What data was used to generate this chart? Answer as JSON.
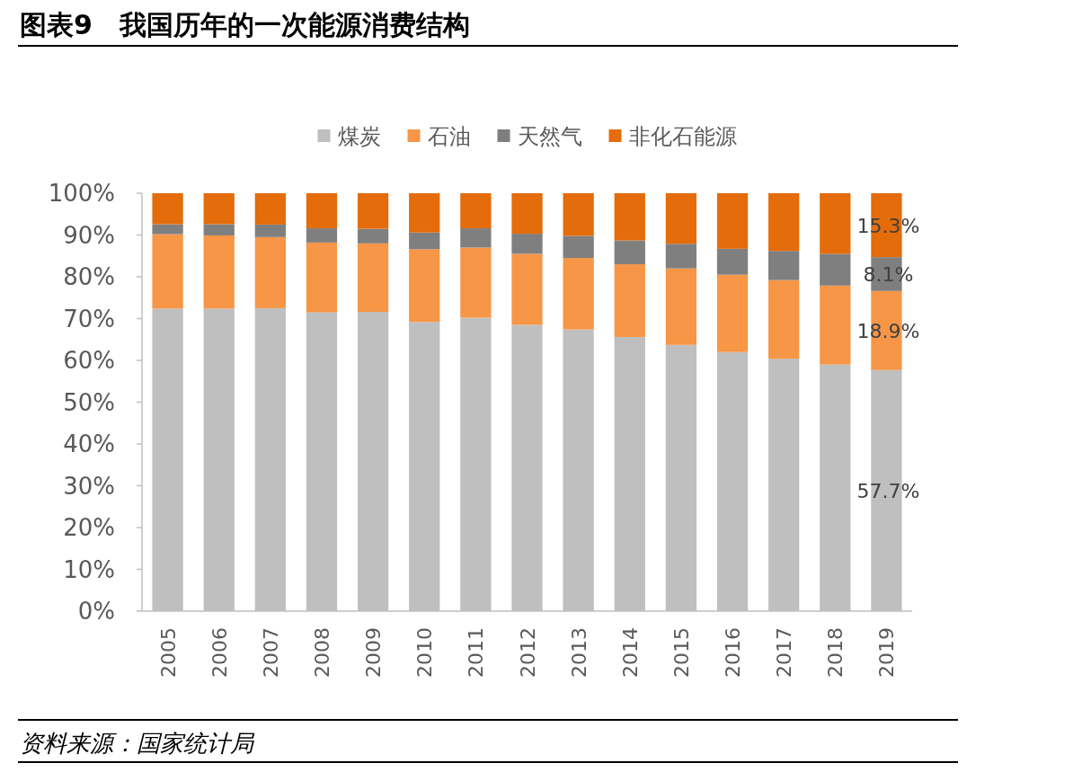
{
  "chart_data": {
    "type": "bar",
    "stacked": true,
    "title": "图表9　我国历年的一次能源消费结构",
    "annotations": [
      "资料来源：国家统计局"
    ],
    "categories": [
      "2005",
      "2006",
      "2007",
      "2008",
      "2009",
      "2010",
      "2011",
      "2012",
      "2013",
      "2014",
      "2015",
      "2016",
      "2017",
      "2018",
      "2019"
    ],
    "ylim": [
      0,
      100
    ],
    "yticks": [
      {
        "value": 0,
        "label": "0%"
      },
      {
        "value": 10,
        "label": "10%"
      },
      {
        "value": 20,
        "label": "20%"
      },
      {
        "value": 30,
        "label": "30%"
      },
      {
        "value": 40,
        "label": "40%"
      },
      {
        "value": 50,
        "label": "50%"
      },
      {
        "value": 60,
        "label": "60%"
      },
      {
        "value": 70,
        "label": "70%"
      },
      {
        "value": 80,
        "label": "80%"
      },
      {
        "value": 90,
        "label": "90%"
      },
      {
        "value": 100,
        "label": "100%"
      }
    ],
    "legend": "top",
    "series": [
      {
        "name": "煤炭",
        "color": "#bfbfbf",
        "values": [
          72.4,
          72.4,
          72.5,
          71.5,
          71.6,
          69.2,
          70.2,
          68.5,
          67.4,
          65.6,
          63.7,
          62.0,
          60.4,
          59.0,
          57.7
        ],
        "value_labels": [
          null,
          null,
          null,
          null,
          null,
          null,
          null,
          null,
          null,
          null,
          null,
          null,
          null,
          null,
          "57.7%"
        ]
      },
      {
        "name": "石油",
        "color": "#f79646",
        "values": [
          17.8,
          17.5,
          17.0,
          16.7,
          16.4,
          17.4,
          16.8,
          17.0,
          17.1,
          17.4,
          18.3,
          18.5,
          18.8,
          18.9,
          18.9
        ],
        "value_labels": [
          null,
          null,
          null,
          null,
          null,
          null,
          null,
          null,
          null,
          null,
          null,
          null,
          null,
          null,
          "18.9%"
        ]
      },
      {
        "name": "天然气",
        "color": "#7f7f7f",
        "values": [
          2.4,
          2.7,
          3.0,
          3.4,
          3.5,
          4.0,
          4.6,
          4.8,
          5.3,
          5.7,
          5.9,
          6.2,
          7.0,
          7.6,
          8.1
        ],
        "value_labels": [
          null,
          null,
          null,
          null,
          null,
          null,
          null,
          null,
          null,
          null,
          null,
          null,
          null,
          null,
          "8.1%"
        ]
      },
      {
        "name": "非化石能源",
        "color": "#e46c0a",
        "values": [
          7.4,
          7.4,
          7.5,
          8.4,
          8.5,
          9.4,
          8.4,
          9.7,
          10.2,
          11.3,
          12.1,
          13.3,
          13.8,
          14.5,
          15.3
        ],
        "value_labels": [
          null,
          null,
          null,
          null,
          null,
          null,
          null,
          null,
          null,
          null,
          null,
          null,
          null,
          null,
          "15.3%"
        ]
      }
    ]
  }
}
